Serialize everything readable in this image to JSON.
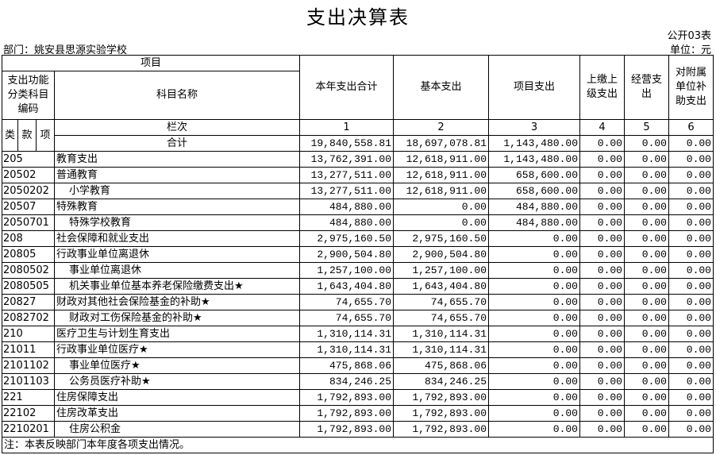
{
  "title": "支出决算表",
  "form_code": "公开03表",
  "department": "部门：姚安县思源实验学校",
  "unit": "单位：元",
  "header": {
    "item": "项目",
    "code_label": "支出功能分类科目编码",
    "name_label": "科目名称",
    "lei": "类",
    "kuan": "款",
    "xiang": "项",
    "column_row_label": "栏次",
    "total_label": "合计",
    "columns": [
      "本年支出合计",
      "基本支出",
      "项目支出",
      "上缴上级支出",
      "经营支出",
      "对附属单位补助支出"
    ],
    "column_numbers": [
      "1",
      "2",
      "3",
      "4",
      "5",
      "6"
    ]
  },
  "totals": [
    "19,840,558.81",
    "18,697,078.81",
    "1,143,480.00",
    "0.00",
    "0.00",
    "0.00"
  ],
  "rows": [
    {
      "code": "205",
      "name": "教育支出",
      "values": [
        "13,762,391.00",
        "12,618,911.00",
        "1,143,480.00",
        "0.00",
        "0.00",
        "0.00"
      ]
    },
    {
      "code": "20502",
      "name": "普通教育",
      "values": [
        "13,277,511.00",
        "12,618,911.00",
        "658,600.00",
        "0.00",
        "0.00",
        "0.00"
      ]
    },
    {
      "code": "2050202",
      "name": "小学教育",
      "values": [
        "13,277,511.00",
        "12,618,911.00",
        "658,600.00",
        "0.00",
        "0.00",
        "0.00"
      ]
    },
    {
      "code": "20507",
      "name": "特殊教育",
      "values": [
        "484,880.00",
        "0.00",
        "484,880.00",
        "0.00",
        "0.00",
        "0.00"
      ]
    },
    {
      "code": "2050701",
      "name": "特殊学校教育",
      "values": [
        "484,880.00",
        "0.00",
        "484,880.00",
        "0.00",
        "0.00",
        "0.00"
      ]
    },
    {
      "code": "208",
      "name": "社会保障和就业支出",
      "values": [
        "2,975,160.50",
        "2,975,160.50",
        "0.00",
        "0.00",
        "0.00",
        "0.00"
      ]
    },
    {
      "code": "20805",
      "name": "行政事业单位离退休",
      "values": [
        "2,900,504.80",
        "2,900,504.80",
        "0.00",
        "0.00",
        "0.00",
        "0.00"
      ]
    },
    {
      "code": "2080502",
      "name": "事业单位离退休",
      "values": [
        "1,257,100.00",
        "1,257,100.00",
        "0.00",
        "0.00",
        "0.00",
        "0.00"
      ]
    },
    {
      "code": "2080505",
      "name": "机关事业单位基本养老保险缴费支出★",
      "values": [
        "1,643,404.80",
        "1,643,404.80",
        "0.00",
        "0.00",
        "0.00",
        "0.00"
      ]
    },
    {
      "code": "20827",
      "name": "财政对其他社会保险基金的补助★",
      "values": [
        "74,655.70",
        "74,655.70",
        "0.00",
        "0.00",
        "0.00",
        "0.00"
      ]
    },
    {
      "code": "2082702",
      "name": "财政对工伤保险基金的补助★",
      "values": [
        "74,655.70",
        "74,655.70",
        "0.00",
        "0.00",
        "0.00",
        "0.00"
      ]
    },
    {
      "code": "210",
      "name": "医疗卫生与计划生育支出",
      "values": [
        "1,310,114.31",
        "1,310,114.31",
        "0.00",
        "0.00",
        "0.00",
        "0.00"
      ]
    },
    {
      "code": "21011",
      "name": "行政事业单位医疗★",
      "values": [
        "1,310,114.31",
        "1,310,114.31",
        "0.00",
        "0.00",
        "0.00",
        "0.00"
      ]
    },
    {
      "code": "2101102",
      "name": "事业单位医疗★",
      "values": [
        "475,868.06",
        "475,868.06",
        "0.00",
        "0.00",
        "0.00",
        "0.00"
      ]
    },
    {
      "code": "2101103",
      "name": "公务员医疗补助★",
      "values": [
        "834,246.25",
        "834,246.25",
        "0.00",
        "0.00",
        "0.00",
        "0.00"
      ]
    },
    {
      "code": "221",
      "name": "住房保障支出",
      "values": [
        "1,792,893.00",
        "1,792,893.00",
        "0.00",
        "0.00",
        "0.00",
        "0.00"
      ]
    },
    {
      "code": "22102",
      "name": "住房改革支出",
      "values": [
        "1,792,893.00",
        "1,792,893.00",
        "0.00",
        "0.00",
        "0.00",
        "0.00"
      ]
    },
    {
      "code": "2210201",
      "name": "住房公积金",
      "values": [
        "1,792,893.00",
        "1,792,893.00",
        "0.00",
        "0.00",
        "0.00",
        "0.00"
      ]
    }
  ],
  "note": "注：本表反映部门本年度各项支出情况。"
}
